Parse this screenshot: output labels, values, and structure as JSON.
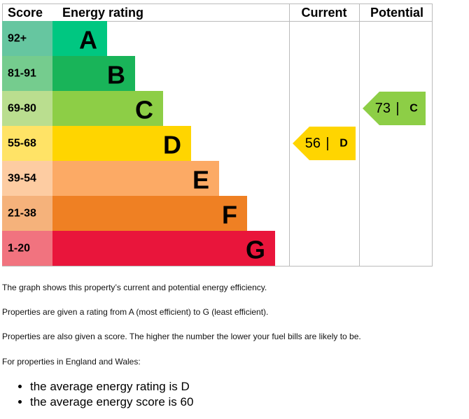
{
  "header": {
    "score": "Score",
    "rating": "Energy rating",
    "current": "Current",
    "potential": "Potential"
  },
  "rows": [
    {
      "score": "92+",
      "letter": "A"
    },
    {
      "score": "81-91",
      "letter": "B"
    },
    {
      "score": "69-80",
      "letter": "C"
    },
    {
      "score": "55-68",
      "letter": "D"
    },
    {
      "score": "39-54",
      "letter": "E"
    },
    {
      "score": "21-38",
      "letter": "F"
    },
    {
      "score": "1-20",
      "letter": "G"
    }
  ],
  "current": {
    "value": 56,
    "separator": "|",
    "letter": "D"
  },
  "potential": {
    "value": 73,
    "separator": "|",
    "letter": "C"
  },
  "paragraphs": [
    "The graph shows this property’s current and potential energy efficiency.",
    "Properties are given a rating from A (most efficient) to G (least efficient).",
    "Properties are also given a score. The higher the number the lower your fuel bills are likely to be.",
    "For properties in England and Wales:"
  ],
  "bullets": [
    "the average energy rating is D",
    "the average energy score is 60"
  ]
}
